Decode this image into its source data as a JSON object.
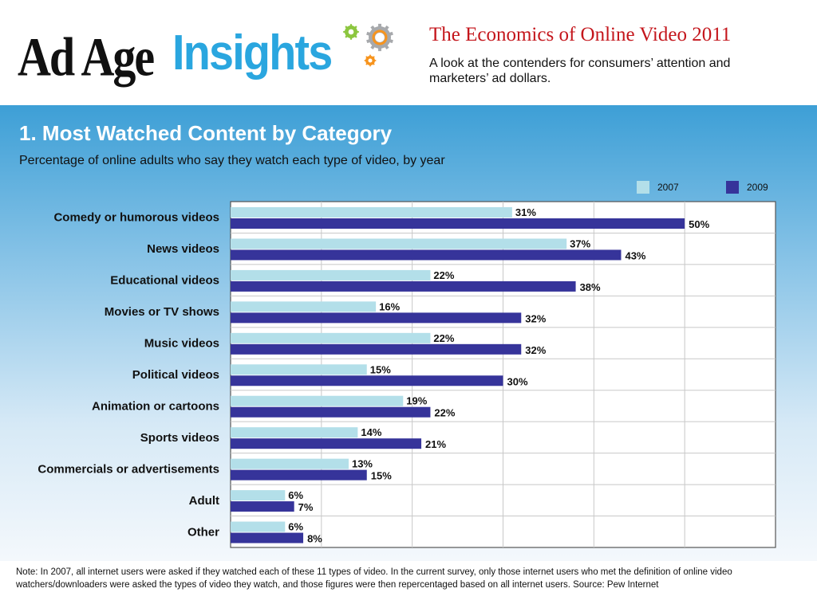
{
  "header": {
    "logo_part1": "Ad Age",
    "logo_part2": "Insights",
    "report_title": "The Economics of Online Video 2011",
    "report_subtitle": "A look at the contenders for consumers’ attention and marketers’ ad dollars."
  },
  "colors": {
    "series_2007": "#b3dfe9",
    "series_2009": "#36349a",
    "title_red": "#c4161c",
    "logo_blue": "#2aa6df",
    "gear_green": "#8cc63f",
    "gear_orange": "#f7941d",
    "gear_grey": "#a7a9ac"
  },
  "chart_data": {
    "type": "bar",
    "orientation": "horizontal",
    "title": "1. Most Watched Content by Category",
    "subtitle": "Percentage of online adults who say they watch each type of video, by year",
    "categories": [
      "Comedy or humorous videos",
      "News videos",
      "Educational videos",
      "Movies or TV shows",
      "Music videos",
      "Political videos",
      "Animation or cartoons",
      "Sports videos",
      "Commercials or advertisements",
      "Adult",
      "Other"
    ],
    "series": [
      {
        "name": "2007",
        "values": [
          31,
          37,
          22,
          16,
          22,
          15,
          19,
          14,
          13,
          6,
          6
        ],
        "labels": [
          "31%",
          "37%",
          "22%",
          "16%",
          "22%",
          "15%",
          "19%",
          "14%",
          "13%",
          "6%",
          "6%"
        ]
      },
      {
        "name": "2009",
        "values": [
          50,
          43,
          38,
          32,
          32,
          30,
          22,
          21,
          15,
          7,
          8
        ],
        "labels": [
          "50%",
          "43%",
          "38%",
          "32%",
          "32%",
          "30%",
          "22%",
          "21%",
          "15%",
          "7%",
          "8%"
        ]
      }
    ],
    "xlim": [
      0,
      60
    ],
    "grid": true,
    "legend_position": "top-right"
  },
  "footnote": "Note: In 2007, all internet users were asked if they watched each of these 11 types of video. In the current survey, only those internet users who met the definition of online video watchers/downloaders were asked the types of video they watch, and those figures were then repercentaged based on all internet users. Source: Pew Internet"
}
